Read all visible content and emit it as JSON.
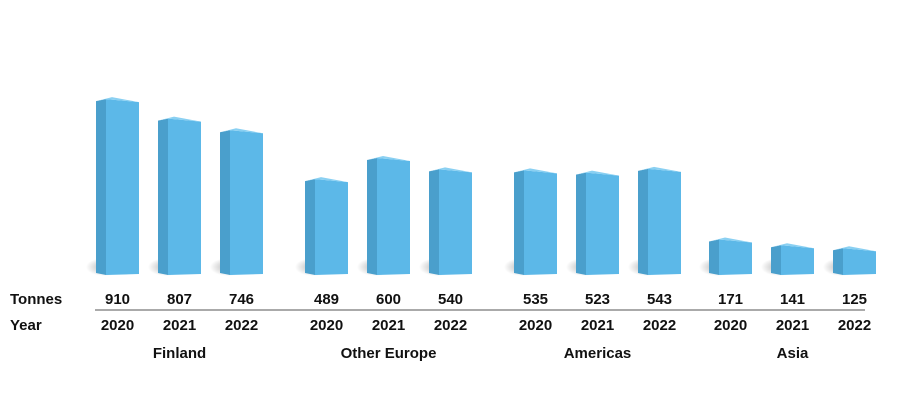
{
  "chart_data": {
    "type": "bar",
    "row_labels": {
      "value": "Tonnes",
      "year": "Year"
    },
    "groups": [
      {
        "name": "Finland",
        "years": [
          "2020",
          "2021",
          "2022"
        ],
        "values": [
          910,
          807,
          746
        ]
      },
      {
        "name": "Other Europe",
        "years": [
          "2020",
          "2021",
          "2022"
        ],
        "values": [
          489,
          600,
          540
        ]
      },
      {
        "name": "Americas",
        "years": [
          "2020",
          "2021",
          "2022"
        ],
        "values": [
          535,
          523,
          543
        ]
      },
      {
        "name": "Asia",
        "years": [
          "2020",
          "2021",
          "2022"
        ],
        "values": [
          171,
          141,
          125
        ]
      }
    ],
    "value_labels_shown": true,
    "grid": false,
    "legend": "none",
    "colors": {
      "bar_front": "#5cb8e8",
      "bar_side": "#4a9fcc",
      "bar_top": "#8ad0f2",
      "shadow": "#9a9a9a",
      "rule": "#555555",
      "text": "#111111"
    }
  }
}
